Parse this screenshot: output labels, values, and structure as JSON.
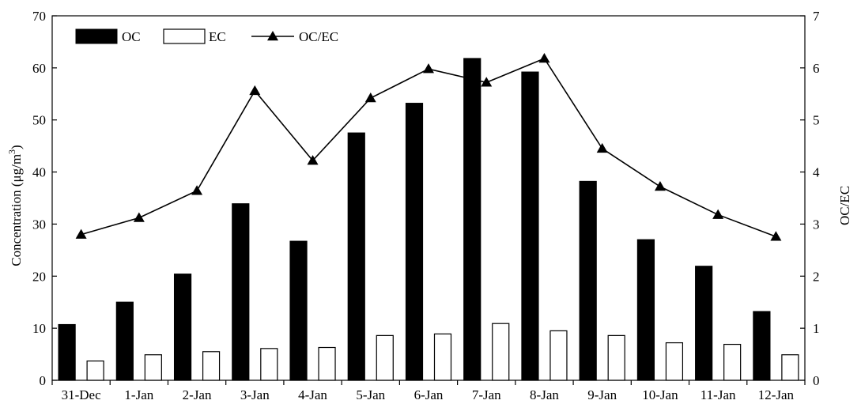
{
  "chart_data": {
    "type": "bar",
    "title": "",
    "categories": [
      "31-Dec",
      "1-Jan",
      "2-Jan",
      "3-Jan",
      "4-Jan",
      "5-Jan",
      "6-Jan",
      "7-Jan",
      "8-Jan",
      "9-Jan",
      "10-Jan",
      "11-Jan",
      "12-Jan"
    ],
    "series": [
      {
        "name": "OC",
        "kind": "bar",
        "axis": "left",
        "fill": "#000000",
        "values": [
          10.7,
          15.0,
          20.4,
          33.9,
          26.7,
          47.5,
          53.2,
          61.8,
          59.2,
          38.2,
          27.0,
          21.9,
          13.2
        ]
      },
      {
        "name": "EC",
        "kind": "bar",
        "axis": "left",
        "fill": "#ffffff",
        "values": [
          3.7,
          4.9,
          5.5,
          6.1,
          6.3,
          8.6,
          8.9,
          10.9,
          9.5,
          8.6,
          7.2,
          6.9,
          4.9
        ]
      },
      {
        "name": "OC/EC",
        "kind": "line",
        "axis": "right",
        "marker": "triangle",
        "color": "#000000",
        "values": [
          2.8,
          3.12,
          3.64,
          5.56,
          4.22,
          5.42,
          5.98,
          5.72,
          6.18,
          4.45,
          3.72,
          3.18,
          2.76
        ]
      }
    ],
    "ylabel": "Concentration (μg/m³)",
    "y2label": "OC/EC",
    "ylim": [
      0,
      70
    ],
    "y2lim": [
      0,
      7
    ],
    "yticks": [
      0,
      10,
      20,
      30,
      40,
      50,
      60,
      70
    ],
    "y2ticks": [
      0,
      1,
      2,
      3,
      4,
      5,
      6,
      7
    ],
    "grid": false,
    "legend_position": "top-left"
  }
}
